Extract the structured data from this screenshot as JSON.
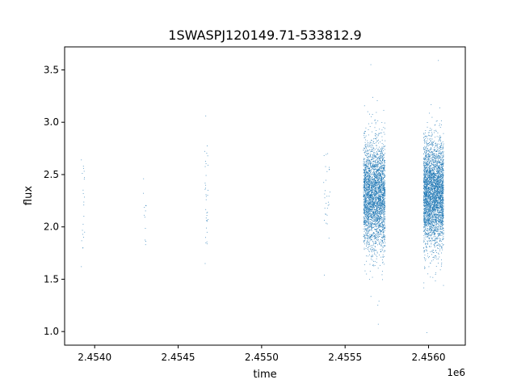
{
  "chart_data": {
    "type": "scatter",
    "title": "1SWASPJ120149.71-533812.9",
    "xlabel": "time",
    "ylabel": "flux",
    "x_offset_label": "1e6",
    "xlim": [
      2.45382,
      2.45622
    ],
    "ylim": [
      0.87,
      3.72
    ],
    "x_ticks": [
      2.454,
      2.4545,
      2.455,
      2.4555,
      2.456
    ],
    "x_tick_labels": [
      "2.4540",
      "2.4545",
      "2.4550",
      "2.4555",
      "2.4560"
    ],
    "y_ticks": [
      1.0,
      1.5,
      2.0,
      2.5,
      3.0,
      3.5
    ],
    "y_tick_labels": [
      "1.0",
      "1.5",
      "2.0",
      "2.5",
      "3.0",
      "3.5"
    ],
    "grid": false,
    "point_color": "#1f77b4",
    "clusters": [
      {
        "x_min": 2.45392,
        "x_max": 2.45394,
        "y_center": 2.15,
        "y_spread": 0.25,
        "y_min": 1.62,
        "y_max": 2.64,
        "count": 22
      },
      {
        "x_min": 2.45429,
        "x_max": 2.45431,
        "y_center": 2.15,
        "y_spread": 0.18,
        "y_min": 1.83,
        "y_max": 2.46,
        "count": 12
      },
      {
        "x_min": 2.45466,
        "x_max": 2.45468,
        "y_center": 2.3,
        "y_spread": 0.28,
        "y_min": 1.65,
        "y_max": 3.06,
        "count": 35
      },
      {
        "x_min": 2.45537,
        "x_max": 2.45541,
        "y_center": 2.3,
        "y_spread": 0.3,
        "y_min": 1.54,
        "y_max": 2.7,
        "count": 30
      },
      {
        "x_min": 2.45561,
        "x_max": 2.45574,
        "y_center": 2.3,
        "y_spread": 0.25,
        "y_min": 1.07,
        "y_max": 3.55,
        "count": 3200
      },
      {
        "x_min": 2.45597,
        "x_max": 2.45609,
        "y_center": 2.32,
        "y_spread": 0.25,
        "y_min": 0.99,
        "y_max": 3.59,
        "count": 3600
      }
    ]
  }
}
